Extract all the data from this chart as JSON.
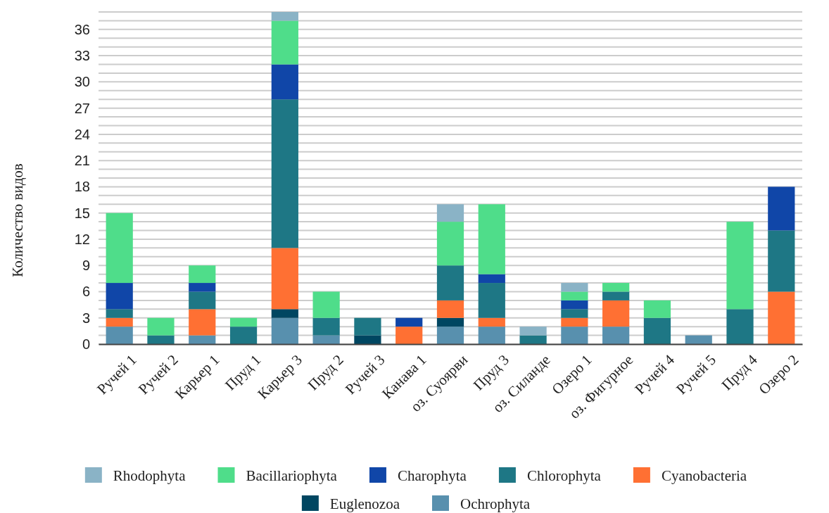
{
  "chart_data": {
    "type": "bar",
    "stacked": true,
    "ylabel": "Количество видов",
    "categories": [
      "Ручей 1",
      "Ручей 2",
      "Карьер 1",
      "Пруд 1",
      "Карьер 3",
      "Пруд 2",
      "Ручей 3",
      "Канава 1",
      "оз. Суоярви",
      "Пруд 3",
      "оз. Силанде",
      "Озеро 1",
      "оз. Фигурное",
      "Ручей 4",
      "Ручей 5",
      "Пруд 4",
      "Озеро 2"
    ],
    "series": [
      {
        "name": "Ochrophyta",
        "color": "#5890ae",
        "values": [
          2,
          0,
          1,
          0,
          3,
          1,
          0,
          0,
          2,
          2,
          0,
          2,
          2,
          0,
          1,
          0,
          0
        ]
      },
      {
        "name": "Euglenozoa",
        "color": "#004661",
        "values": [
          0,
          0,
          0,
          0,
          1,
          0,
          1,
          0,
          1,
          0,
          0,
          0,
          0,
          0,
          0,
          0,
          0
        ]
      },
      {
        "name": "Cyanobacteria",
        "color": "#ff7033",
        "values": [
          1,
          0,
          3,
          0,
          7,
          0,
          0,
          2,
          2,
          1,
          0,
          1,
          3,
          0,
          0,
          0,
          6
        ]
      },
      {
        "name": "Chlorophyta",
        "color": "#1e7785",
        "values": [
          1,
          1,
          2,
          2,
          17,
          2,
          2,
          0,
          4,
          4,
          1,
          1,
          1,
          3,
          0,
          4,
          7
        ]
      },
      {
        "name": "Charophyta",
        "color": "#1046a8",
        "values": [
          3,
          0,
          1,
          0,
          4,
          0,
          0,
          1,
          0,
          1,
          0,
          1,
          0,
          0,
          0,
          0,
          5
        ]
      },
      {
        "name": "Bacillariophyta",
        "color": "#4fdd8a",
        "values": [
          8,
          2,
          2,
          1,
          5,
          3,
          0,
          0,
          5,
          8,
          0,
          1,
          1,
          2,
          0,
          10,
          0
        ]
      },
      {
        "name": "Rhodophyta",
        "color": "#8ab3c6",
        "values": [
          0,
          0,
          0,
          0,
          1,
          0,
          0,
          0,
          2,
          0,
          1,
          1,
          0,
          0,
          0,
          0,
          0
        ]
      }
    ],
    "ylim": [
      0,
      38
    ],
    "yticks": [
      0,
      {
        "value": 1,
        "label": null
      },
      {
        "value": 2,
        "label": null
      },
      3,
      {
        "value": 4,
        "label": null
      },
      {
        "value": 5,
        "label": null
      },
      6,
      {
        "value": 7,
        "label": null
      },
      {
        "value": 8,
        "label": null
      },
      9,
      {
        "value": 10,
        "label": null
      },
      {
        "value": 11,
        "label": null
      },
      12,
      {
        "value": 13,
        "label": null
      },
      {
        "value": 14,
        "label": null
      },
      15,
      {
        "value": 16,
        "label": null
      },
      {
        "value": 17,
        "label": null
      },
      18,
      {
        "value": 19,
        "label": null
      },
      {
        "value": 20,
        "label": null
      },
      21,
      {
        "value": 22,
        "label": null
      },
      {
        "value": 23,
        "label": null
      },
      24,
      {
        "value": 25,
        "label": null
      },
      {
        "value": 26,
        "label": null
      },
      27,
      {
        "value": 28,
        "label": null
      },
      {
        "value": 29,
        "label": null
      },
      30,
      {
        "value": 31,
        "label": null
      },
      {
        "value": 32,
        "label": null
      },
      33,
      {
        "value": 34,
        "label": null
      },
      {
        "value": 35,
        "label": null
      },
      36,
      {
        "value": 37,
        "label": null
      },
      {
        "value": 38,
        "label": null
      }
    ],
    "grid": "y",
    "legend": "bottom"
  }
}
